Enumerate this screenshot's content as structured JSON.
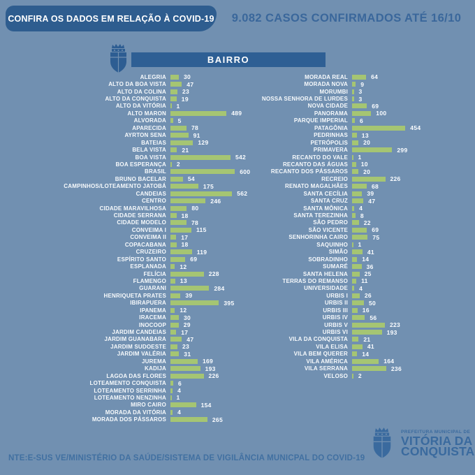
{
  "header": {
    "badge": "CONFIRA OS DADOS EM RELAÇÃO À COVID-19",
    "title": "9.082 CASOS CONFIRMADOS ATÉ 16/10"
  },
  "table_header": "BAIRRO",
  "footer": {
    "source": "NTE:E-SUS VE/MINISTÉRIO DA SAÚDE/SISTEMA DE VIGILÂNCIA MUNICPAL DO COVID-19",
    "logo_small": "PREFEITURA MUNICIPAL DE",
    "logo_line1": "VITÓRIA DA",
    "logo_line2": "CONQUISTA"
  },
  "icons": [
    "crest-icon",
    "city-crest-icon"
  ],
  "colors": {
    "background": "#7190b1",
    "badge_blue": "#2e5d8f",
    "header_blue": "#2e5f94",
    "title_text": "#3a679b",
    "bar_green": "#a5c573",
    "label_white": "#ffffff",
    "footer_blue": "#4170a1"
  },
  "chart_data": {
    "type": "bar",
    "orientation": "horizontal",
    "title": "BAIRRO",
    "legend": false,
    "grid": false,
    "columns": [
      {
        "categories": [
          "ALEGRIA",
          "ALTO DA BOA VISTA",
          "ALTO DA COLINA",
          "ALTO DA CONQUISTA",
          "ALTO DA VITÓRIA",
          "ALTO MARON",
          "ALVORADA",
          "APARECIDA",
          "AYRTON SENA",
          "BATEIAS",
          "BELA VISTA",
          "BOA VISTA",
          "BOA ESPERANÇA",
          "BRASIL",
          "BRUNO BACELAR",
          "CAMPINHOS/LOTEAMENTO JATOBÁ",
          "CANDEIAS",
          "CENTRO",
          "CIDADE MARAVILHOSA",
          "CIDADE SERRANA",
          "CIDADE MODELO",
          "CONVEIMA I",
          "CONVEIMA II",
          "COPACABANA",
          "CRUZEIRO",
          "ESPÍRITO SANTO",
          "ESPLANADA",
          "FELÍCIA",
          "FLAMENGO",
          "GUARANI",
          "HENRIQUETA PRATES",
          "IBIRAPUERA",
          "IPANEMA",
          "IRACEMA",
          "INOCOOP",
          "JARDIM CANDEIAS",
          "JARDIM GUANABARA",
          "JARDIM SUDOESTE",
          "JARDIM VALÉRIA",
          "JUREMA",
          "KADIJA",
          "LAGOA DAS FLORES",
          "LOTEAMENTO CONQUISTA",
          "LOTEAMENTO SERRINHA",
          "LOTEAMENTO NENZINHA",
          "MIRO CAIRO",
          "MORADA DA VITÓRIA",
          "MORADA DOS PÁSSAROS"
        ],
        "values": [
          30,
          47,
          23,
          19,
          1,
          489,
          5,
          78,
          91,
          129,
          21,
          542,
          2,
          600,
          54,
          175,
          562,
          246,
          80,
          18,
          78,
          115,
          17,
          18,
          119,
          69,
          12,
          228,
          13,
          284,
          39,
          395,
          12,
          30,
          29,
          17,
          47,
          23,
          31,
          169,
          193,
          226,
          6,
          4,
          1,
          154,
          4,
          265
        ]
      },
      {
        "categories": [
          "MORADA REAL",
          "MORADA NOVA",
          "MORUMBI",
          "NOSSA SENHORA DE LURDES",
          "NOVA CIDADE",
          "PANORAMA",
          "PARQUE IMPERIAL",
          "PATAGÔNIA",
          "PEDRINHAS",
          "PETRÓPOLIS",
          "PRIMAVERA",
          "RECANTO DO VALE",
          "RECANTO DAS ÁGUAS",
          "RECANTO DOS PÁSSAROS",
          "RECREIO",
          "RENATO MAGALHÃES",
          "SANTA CECÍLIA",
          "SANTA CRUZ",
          "SANTA MÔNICA",
          "SANTA TEREZINHA",
          "SÃO PEDRO",
          "SÃO VICENTE",
          "SENHORINHA CAIRO",
          "SAQUINHO",
          "SIMÃO",
          "SOBRADINHO",
          "SUMARÉ",
          "SANTA HELENA",
          "TERRAS DO REMANSO",
          "UNIVERSIDADE",
          "URBIS I",
          "URBIS II",
          "URBIS III",
          "URBIS IV",
          "URBIS V",
          "URBIS VI",
          "VILA DA CONQUISTA",
          "VILA ELISA",
          "VILA BEM QUERER",
          "VILA AMÉRICA",
          "VILA SERRANA",
          "VELOSO"
        ],
        "values": [
          64,
          9,
          3,
          3,
          69,
          100,
          6,
          454,
          13,
          20,
          299,
          1,
          10,
          20,
          226,
          68,
          39,
          47,
          4,
          8,
          22,
          69,
          75,
          1,
          41,
          14,
          36,
          25,
          11,
          4,
          26,
          50,
          16,
          56,
          223,
          193,
          21,
          41,
          14,
          164,
          236,
          2
        ]
      }
    ]
  }
}
